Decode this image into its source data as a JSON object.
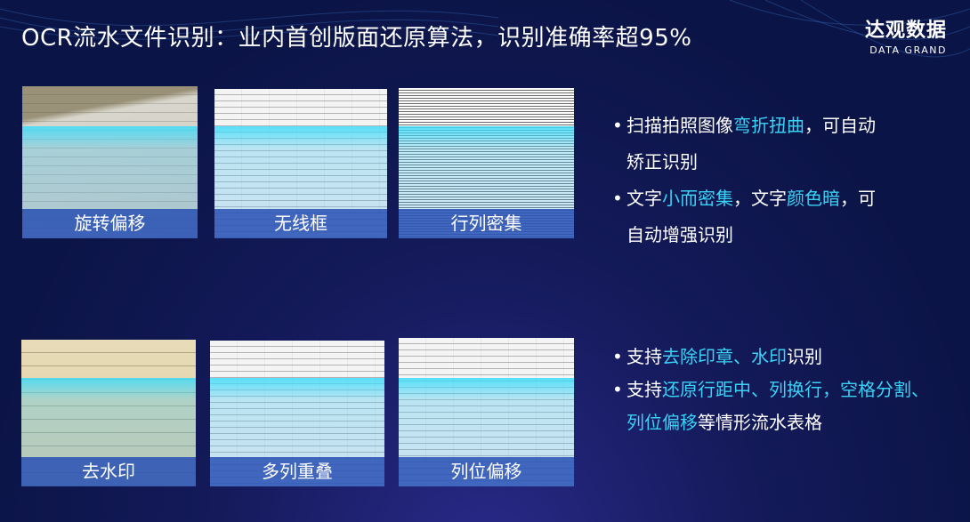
{
  "header": {
    "title": "OCR流水文件识别：业内首创版面还原算法，识别准确率超95%",
    "logo_cn": "达观数据",
    "logo_en": "DATA GRAND"
  },
  "cards": [
    {
      "label": "旋转偏移"
    },
    {
      "label": "无线框"
    },
    {
      "label": "行列密集"
    },
    {
      "label": "去水印"
    },
    {
      "label": "多列重叠"
    },
    {
      "label": "列位偏移"
    }
  ],
  "bullets_top": [
    {
      "pre": "扫描拍照图像",
      "hl": "弯折扭曲",
      "post": "，可自动",
      "line2": "矫正识别"
    },
    {
      "pre": "文字",
      "hl": "小而密集",
      "mid": "，文字",
      "hl2": "颜色暗",
      "post": "，可",
      "line2": "自动增强识别"
    }
  ],
  "bullets_bottom": [
    {
      "pre": "支持",
      "hl": "去除印章、水印",
      "post": "识别"
    },
    {
      "pre": "支持",
      "hl": "还原行距中、列换行，空格分割、",
      "line2_hl": "列位偏移",
      "line2_post": "等情形流水表格"
    }
  ],
  "colors": {
    "highlight": "#3ad2f5",
    "background": "#0b1446",
    "band": "#2850b4"
  }
}
